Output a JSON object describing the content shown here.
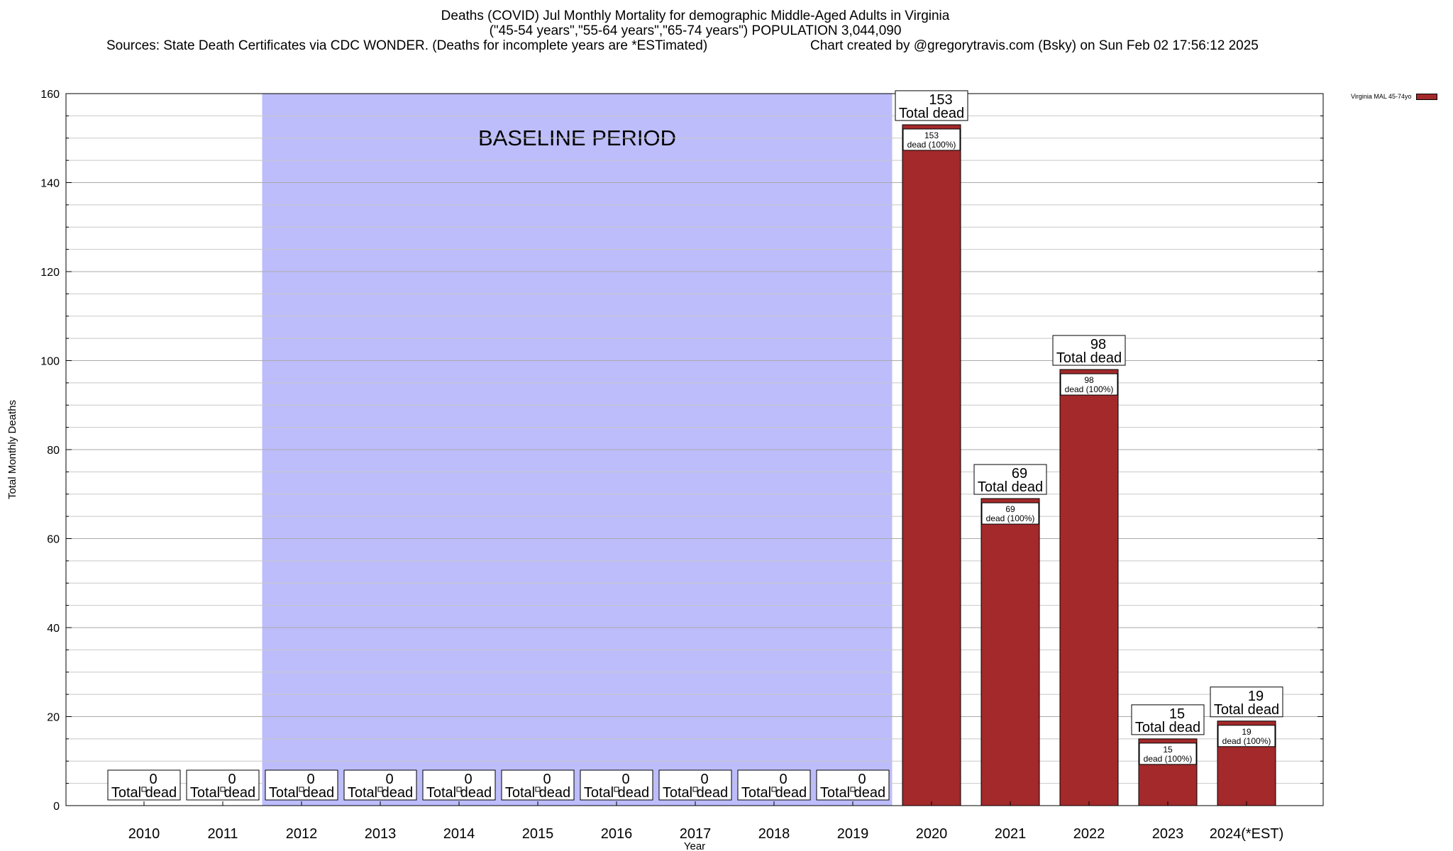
{
  "header": {
    "title_line1": "Deaths (COVID) Jul Monthly Mortality for demographic Middle-Aged Adults in Virginia",
    "title_line2": "(\"45-54 years\",\"55-64 years\",\"65-74 years\") POPULATION 3,044,090",
    "sources": "Sources: State Death Certificates via CDC WONDER. (Deaths for incomplete years are *ESTimated)",
    "credit": "Chart created by @gregorytravis.com (Bsky) on Sun Feb 02 17:56:12 2025"
  },
  "chart_data": {
    "type": "bar",
    "title": "Deaths (COVID) Jul Monthly Mortality for demographic Middle-Aged Adults in Virginia",
    "xlabel": "Year",
    "ylabel": "Total Monthly Deaths",
    "ylim": [
      0,
      160
    ],
    "yticks": [
      0,
      20,
      40,
      60,
      80,
      100,
      120,
      140,
      160
    ],
    "grid": true,
    "legend_placement": "top-right",
    "categories": [
      "2010",
      "2011",
      "2012",
      "2013",
      "2014",
      "2015",
      "2016",
      "2017",
      "2018",
      "2019",
      "2020",
      "2021",
      "2022",
      "2023",
      "2024(*EST)"
    ],
    "series": [
      {
        "name": "Virginia MAL 45-74yo",
        "color": "#a3292b",
        "values": [
          0,
          0,
          0,
          0,
          0,
          0,
          0,
          0,
          0,
          0,
          153,
          69,
          98,
          15,
          19
        ]
      }
    ],
    "total_label_suffix": "Total dead",
    "inner_label_suffix": "dead (100%)",
    "baseline": {
      "label": "BASELINE PERIOD",
      "from": "2012",
      "to": "2019",
      "color": "#bdbdfc"
    }
  }
}
